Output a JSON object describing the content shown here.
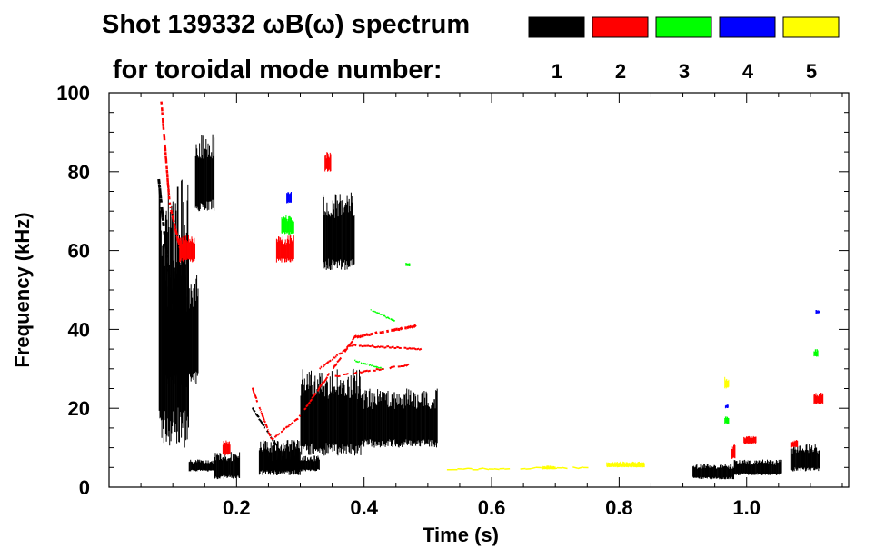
{
  "chart_data": {
    "type": "heatmap",
    "title_line1": "Shot 139332 ωB(ω) spectrum",
    "title_line2": "for toroidal mode number:",
    "xlabel": "Time (s)",
    "ylabel": "Frequency (kHz)",
    "xlim": [
      0.0,
      1.16
    ],
    "ylim": [
      0,
      100
    ],
    "x_ticks": [
      {
        "value": 0.2,
        "label": "0.2"
      },
      {
        "value": 0.4,
        "label": "0.4"
      },
      {
        "value": 0.6,
        "label": "0.6"
      },
      {
        "value": 0.8,
        "label": "0.8"
      },
      {
        "value": 1.0,
        "label": "1.0"
      }
    ],
    "y_ticks": [
      {
        "value": 0,
        "label": "0"
      },
      {
        "value": 20,
        "label": "20"
      },
      {
        "value": 40,
        "label": "40"
      },
      {
        "value": 60,
        "label": "60"
      },
      {
        "value": 80,
        "label": "80"
      },
      {
        "value": 100,
        "label": "100"
      }
    ],
    "legend": [
      {
        "mode": "1",
        "color": "#000000"
      },
      {
        "mode": "2",
        "color": "#ff0000"
      },
      {
        "mode": "3",
        "color": "#00ff00"
      },
      {
        "mode": "4",
        "color": "#0000ff"
      },
      {
        "mode": "5",
        "color": "#ffff00"
      }
    ],
    "series": [
      {
        "name": "n=1",
        "mode": "1",
        "color": "#000000",
        "regions": [
          {
            "t0": 0.078,
            "t1": 0.125,
            "f0": 10,
            "f1": 78
          },
          {
            "t0": 0.085,
            "t1": 0.14,
            "f0": 25,
            "f1": 55
          },
          {
            "t0": 0.135,
            "t1": 0.165,
            "f0": 70,
            "f1": 90
          },
          {
            "t0": 0.125,
            "t1": 0.165,
            "f0": 4,
            "f1": 7
          },
          {
            "t0": 0.165,
            "t1": 0.205,
            "f0": 2,
            "f1": 9
          },
          {
            "t0": 0.235,
            "t1": 0.3,
            "f0": 3,
            "f1": 12
          },
          {
            "t0": 0.25,
            "t1": 0.33,
            "f0": 4,
            "f1": 8
          },
          {
            "t0": 0.3,
            "t1": 0.395,
            "f0": 8,
            "f1": 30
          },
          {
            "t0": 0.39,
            "t1": 0.515,
            "f0": 10,
            "f1": 25
          },
          {
            "t0": 0.335,
            "t1": 0.385,
            "f0": 55,
            "f1": 75
          },
          {
            "t0": 0.915,
            "t1": 0.98,
            "f0": 2,
            "f1": 6
          },
          {
            "t0": 0.98,
            "t1": 1.055,
            "f0": 3,
            "f1": 7
          },
          {
            "t0": 1.07,
            "t1": 1.115,
            "f0": 4,
            "f1": 11
          }
        ],
        "bands": [
          {
            "t0": 0.078,
            "f0": 78,
            "t1": 0.1,
            "f1": 45,
            "w": 3
          },
          {
            "t0": 0.225,
            "f0": 20,
            "t1": 0.265,
            "f1": 10,
            "w": 2
          }
        ]
      },
      {
        "name": "n=2",
        "mode": "2",
        "color": "#ff0000",
        "regions": [
          {
            "t0": 0.11,
            "t1": 0.135,
            "f0": 57,
            "f1": 64
          },
          {
            "t0": 0.262,
            "t1": 0.29,
            "f0": 57,
            "f1": 64
          },
          {
            "t0": 0.338,
            "t1": 0.348,
            "f0": 80,
            "f1": 85
          },
          {
            "t0": 0.178,
            "t1": 0.19,
            "f0": 8,
            "f1": 12
          },
          {
            "t0": 0.975,
            "t1": 0.982,
            "f0": 7,
            "f1": 11
          },
          {
            "t0": 0.995,
            "t1": 1.015,
            "f0": 11,
            "f1": 13
          },
          {
            "t0": 1.105,
            "t1": 1.12,
            "f0": 21,
            "f1": 24
          },
          {
            "t0": 1.07,
            "t1": 1.08,
            "f0": 10,
            "f1": 12
          }
        ],
        "bands": [
          {
            "t0": 0.082,
            "f0": 98,
            "t1": 0.095,
            "f1": 72,
            "w": 2.5
          },
          {
            "t0": 0.095,
            "f0": 72,
            "t1": 0.112,
            "f1": 60,
            "w": 2.5
          },
          {
            "t0": 0.225,
            "f0": 25,
            "t1": 0.255,
            "f1": 12,
            "w": 2
          },
          {
            "t0": 0.255,
            "f0": 12,
            "t1": 0.3,
            "f1": 18,
            "w": 2
          },
          {
            "t0": 0.3,
            "f0": 18,
            "t1": 0.385,
            "f1": 38,
            "w": 2
          },
          {
            "t0": 0.385,
            "f0": 38,
            "t1": 0.485,
            "f1": 41,
            "w": 3
          },
          {
            "t0": 0.33,
            "f0": 30,
            "t1": 0.38,
            "f1": 36,
            "w": 2
          },
          {
            "t0": 0.38,
            "f0": 36,
            "t1": 0.49,
            "f1": 35,
            "w": 2
          },
          {
            "t0": 0.35,
            "f0": 28,
            "t1": 0.47,
            "f1": 31,
            "w": 2
          }
        ]
      },
      {
        "name": "n=3",
        "mode": "3",
        "color": "#00ff00",
        "regions": [
          {
            "t0": 0.27,
            "t1": 0.29,
            "f0": 64,
            "f1": 69
          },
          {
            "t0": 1.105,
            "t1": 1.112,
            "f0": 33,
            "f1": 35
          },
          {
            "t0": 0.965,
            "t1": 0.972,
            "f0": 16,
            "f1": 18
          },
          {
            "t0": 0.465,
            "t1": 0.472,
            "f0": 56,
            "f1": 57
          }
        ],
        "bands": [
          {
            "t0": 0.41,
            "f0": 45,
            "t1": 0.45,
            "f1": 42,
            "w": 1.5
          },
          {
            "t0": 0.385,
            "f0": 32,
            "t1": 0.43,
            "f1": 30,
            "w": 1.5
          }
        ]
      },
      {
        "name": "n=4",
        "mode": "4",
        "color": "#0000ff",
        "regions": [
          {
            "t0": 0.278,
            "t1": 0.286,
            "f0": 72,
            "f1": 75
          },
          {
            "t0": 1.108,
            "t1": 1.114,
            "f0": 44,
            "f1": 45
          },
          {
            "t0": 0.966,
            "t1": 0.971,
            "f0": 20,
            "f1": 21
          }
        ],
        "bands": []
      },
      {
        "name": "n=5",
        "mode": "5",
        "color": "#ffff00",
        "regions": [
          {
            "t0": 0.965,
            "t1": 0.972,
            "f0": 25,
            "f1": 28
          },
          {
            "t0": 0.78,
            "t1": 0.84,
            "f0": 5,
            "f1": 6.5
          },
          {
            "t0": 0.68,
            "t1": 0.7,
            "f0": 4.5,
            "f1": 5.5
          }
        ],
        "bands": [
          {
            "t0": 0.53,
            "f0": 4.5,
            "t1": 0.76,
            "f1": 5,
            "w": 1.5
          }
        ]
      }
    ]
  }
}
